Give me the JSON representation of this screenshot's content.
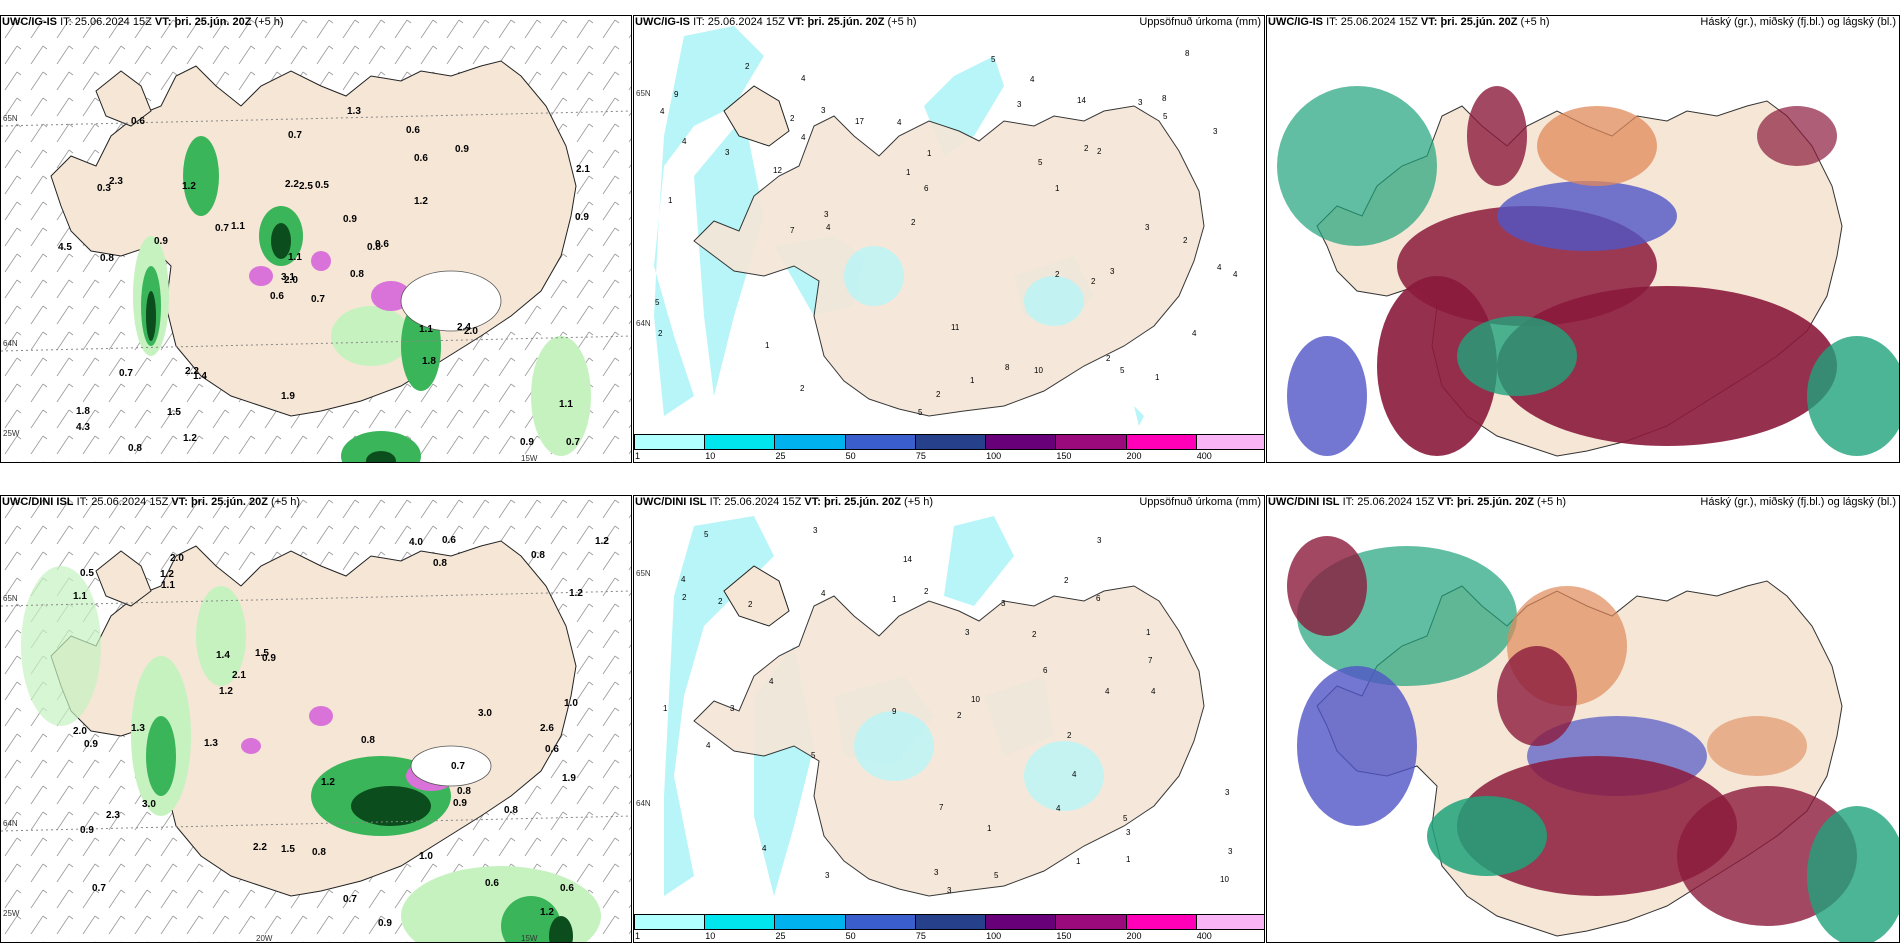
{
  "rows": [
    {
      "model": "UWC/IG-IS",
      "init_label": "IT:",
      "init": "25.06.2024 15Z",
      "valid_label": "VT:",
      "valid": "þri. 25.jún. 20Z",
      "lead": "(+5 h)",
      "left_labels": [
        "0.7",
        "0.3",
        "2.0",
        "1.8",
        "0.8",
        "1.4",
        "0.6",
        "0.5",
        "0.6",
        "0.8",
        "0.6",
        "0.7",
        "0.8",
        "2.1",
        "0.6",
        "1.2",
        "0.8",
        "2.2",
        "0.9",
        "0.7",
        "1.1",
        "4.3",
        "1.5",
        "2.5",
        "0.6",
        "2.0",
        "2.3",
        "0.7",
        "4.5",
        "1.1",
        "0.9",
        "3.1",
        "1.9",
        "1.1",
        "1.2",
        "0.9",
        "2.2",
        "0.9",
        "1.1",
        "2.4",
        "1.3",
        "0.7",
        "0.9",
        "1.8",
        "1.2"
      ],
      "left_axis": [
        "65N",
        "64N",
        "25W",
        "15W"
      ],
      "mid_numbers": [
        "4",
        "4",
        "1",
        "2",
        "3",
        "5",
        "2",
        "4",
        "8",
        "4",
        "4",
        "3",
        "2",
        "1",
        "1",
        "2",
        "3",
        "4",
        "1",
        "8",
        "5",
        "2",
        "6",
        "11",
        "14",
        "12",
        "5",
        "4",
        "2",
        "7",
        "5",
        "10",
        "8",
        "3",
        "9",
        "4",
        "17",
        "3",
        "5",
        "2",
        "2",
        "2",
        "1",
        "2",
        "1",
        "3",
        "4",
        "3",
        "4",
        "3",
        "1",
        "5",
        "2",
        "2"
      ],
      "mid_axis": [
        "65N",
        "64N"
      ]
    },
    {
      "model": "UWC/DINI ISL",
      "init_label": "IT:",
      "init": "25.06.2024 15Z",
      "valid_label": "VT:",
      "valid": "þri. 25.jún. 20Z",
      "lead": "(+5 h)",
      "left_labels": [
        "0.7",
        "0.6",
        "0.7",
        "2.0",
        "0.9",
        "0.6",
        "0.9",
        "0.8",
        "1.4",
        "0.9",
        "1.1",
        "2.0",
        "0.5",
        "0.6",
        "2.2",
        "1.0",
        "1.2",
        "0.8",
        "1.5",
        "3.0",
        "1.2",
        "0.8",
        "1.2",
        "1.9",
        "4.0",
        "1.2",
        "0.8",
        "0.9",
        "1.1",
        "3.0",
        "0.7",
        "1.0",
        "2.1",
        "1.3",
        "2.6",
        "0.8",
        "0.9",
        "1.3",
        "0.8",
        "2.3",
        "1.2",
        "0.6",
        "1.2",
        "1.5"
      ],
      "left_axis": [
        "65N",
        "64N",
        "25W",
        "20W",
        "15W"
      ],
      "mid_numbers": [
        "3",
        "3",
        "4",
        "1",
        "3",
        "2",
        "5",
        "2",
        "4",
        "4",
        "5",
        "3",
        "2",
        "2",
        "3",
        "6",
        "3",
        "4",
        "1",
        "4",
        "2",
        "7",
        "6",
        "9",
        "7",
        "2",
        "5",
        "10",
        "10",
        "14",
        "4",
        "3",
        "3",
        "4",
        "5",
        "1",
        "3",
        "4",
        "1",
        "1",
        "2",
        "1",
        "4",
        "3",
        "2",
        "3"
      ],
      "mid_axis": [
        "65N",
        "64N"
      ]
    }
  ],
  "precip_title": "Uppsöfnuð úrkoma (mm)",
  "cloud_title": "Háský (gr.), miðský (fj.bl.) og lágský (bl.)",
  "colorbar": {
    "ticks": [
      "1",
      "10",
      "25",
      "50",
      "75",
      "100",
      "150",
      "200",
      "400"
    ],
    "colors": [
      "#b2ffff",
      "#00e5ee",
      "#00b2ee",
      "#3a5fcd",
      "#27408b",
      "#68007a",
      "#9b0a7d",
      "#ff00b8",
      "#f8b4f5"
    ]
  },
  "colors": {
    "land": "#f5e6d6",
    "sea": "#ffffff",
    "precip_light": "#b8f5f8",
    "green_light": "#c6f2c0",
    "green_mid": "#3bb55a",
    "green_dark": "#0b4d1c",
    "magenta": "#d973d9",
    "cloud_high": "#1fa27a",
    "cloud_mid": "#5055c6",
    "cloud_low": "#8b1a3c",
    "cloud_orange": "#e08a5a"
  }
}
